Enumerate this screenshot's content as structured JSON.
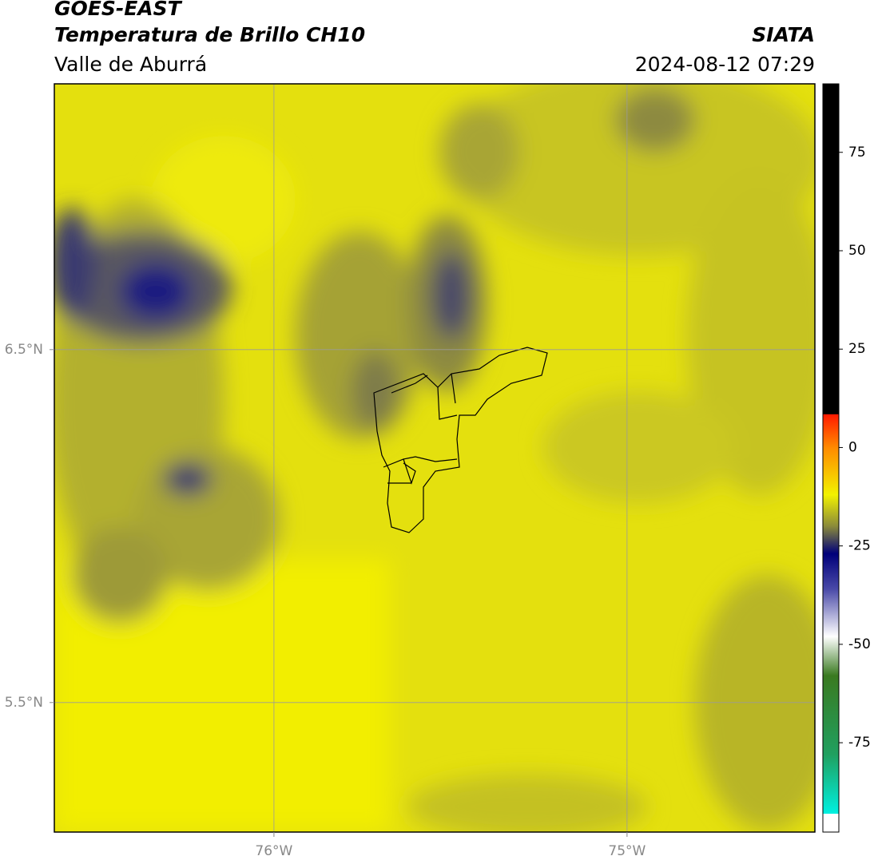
{
  "header": {
    "title": "GOES-EAST",
    "subtitle": "Temperatura de Brillo CH10",
    "region": "Valle de Aburrá",
    "source": "SIATA",
    "timestamp": "2024-08-12 07:29"
  },
  "map": {
    "lonlim": [
      -76.622,
      -74.468
    ],
    "latlim": [
      5.133,
      7.253
    ],
    "lon_ticks": [
      {
        "value": -76,
        "label": "76°W"
      },
      {
        "value": -75,
        "label": "75°W"
      }
    ],
    "lat_ticks": [
      {
        "value": 6.5,
        "label": "6.5°N"
      },
      {
        "value": 5.5,
        "label": "5.5°N"
      }
    ]
  },
  "colorbar": {
    "lim": [
      -97.7,
      92.4
    ],
    "ticks": [
      -75,
      -50,
      -25,
      0,
      25,
      50,
      75
    ],
    "stops": [
      {
        "value": 92.4,
        "color": "#000000"
      },
      {
        "value": 8.5,
        "color": "#000000"
      },
      {
        "value": 8.4,
        "color": "#ff1a00"
      },
      {
        "value": 0,
        "color": "#ff8a00"
      },
      {
        "value": -12,
        "color": "#f2f200"
      },
      {
        "value": -20,
        "color": "#8a8a3a"
      },
      {
        "value": -27,
        "color": "#00007a"
      },
      {
        "value": -36,
        "color": "#4a4aa8"
      },
      {
        "value": -48,
        "color": "#ffffff"
      },
      {
        "value": -58,
        "color": "#3a7a20"
      },
      {
        "value": -78,
        "color": "#20a060"
      },
      {
        "value": -93,
        "color": "#00f0e0"
      },
      {
        "value": -93.1,
        "color": "#ffffff"
      },
      {
        "value": -97.7,
        "color": "#ffffff"
      }
    ]
  }
}
